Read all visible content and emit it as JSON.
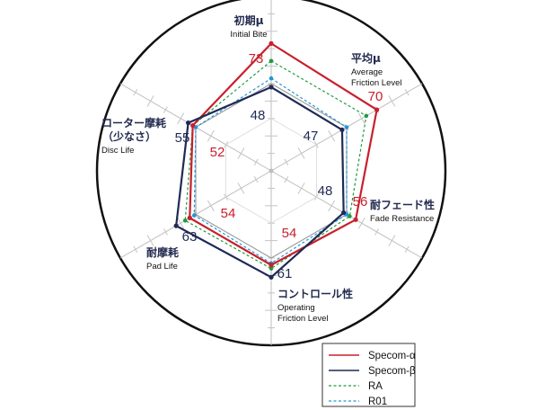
{
  "chart_data": {
    "type": "radar",
    "axes": [
      {
        "ja": "初期μ",
        "en": [
          "Initial Bite"
        ]
      },
      {
        "ja": "平均μ",
        "en": [
          "Average",
          "Friction Level"
        ]
      },
      {
        "ja": "耐フェード性",
        "en": [
          "Fade Resistance"
        ]
      },
      {
        "ja": "コントロール性",
        "en": [
          "Operating",
          "Friction Level"
        ]
      },
      {
        "ja": "耐摩耗",
        "en": [
          "Pad Life"
        ]
      },
      {
        "ja": "ローター摩耗",
        "ja2": "（少なさ）",
        "en": [
          "Disc Life"
        ]
      }
    ],
    "range": [
      0,
      100
    ],
    "series": [
      {
        "name": "Specom-α",
        "values": [
          73,
          70,
          56,
          54,
          54,
          52
        ],
        "color": "#c8202c",
        "style": "solid",
        "labels": true
      },
      {
        "name": "Specom-β",
        "values": [
          48,
          47,
          48,
          61,
          63,
          55
        ],
        "color": "#1f2a55",
        "style": "solid",
        "labels": true
      },
      {
        "name": "RA",
        "values": [
          63,
          63,
          52,
          56,
          57,
          52
        ],
        "color": "#1e9a3c",
        "style": "dashed",
        "labels": false
      },
      {
        "name": "R01",
        "values": [
          53,
          50,
          50,
          53,
          51,
          50
        ],
        "color": "#2196d6",
        "style": "dashed",
        "labels": false
      }
    ],
    "legend": "bottom-right",
    "grid": true
  }
}
